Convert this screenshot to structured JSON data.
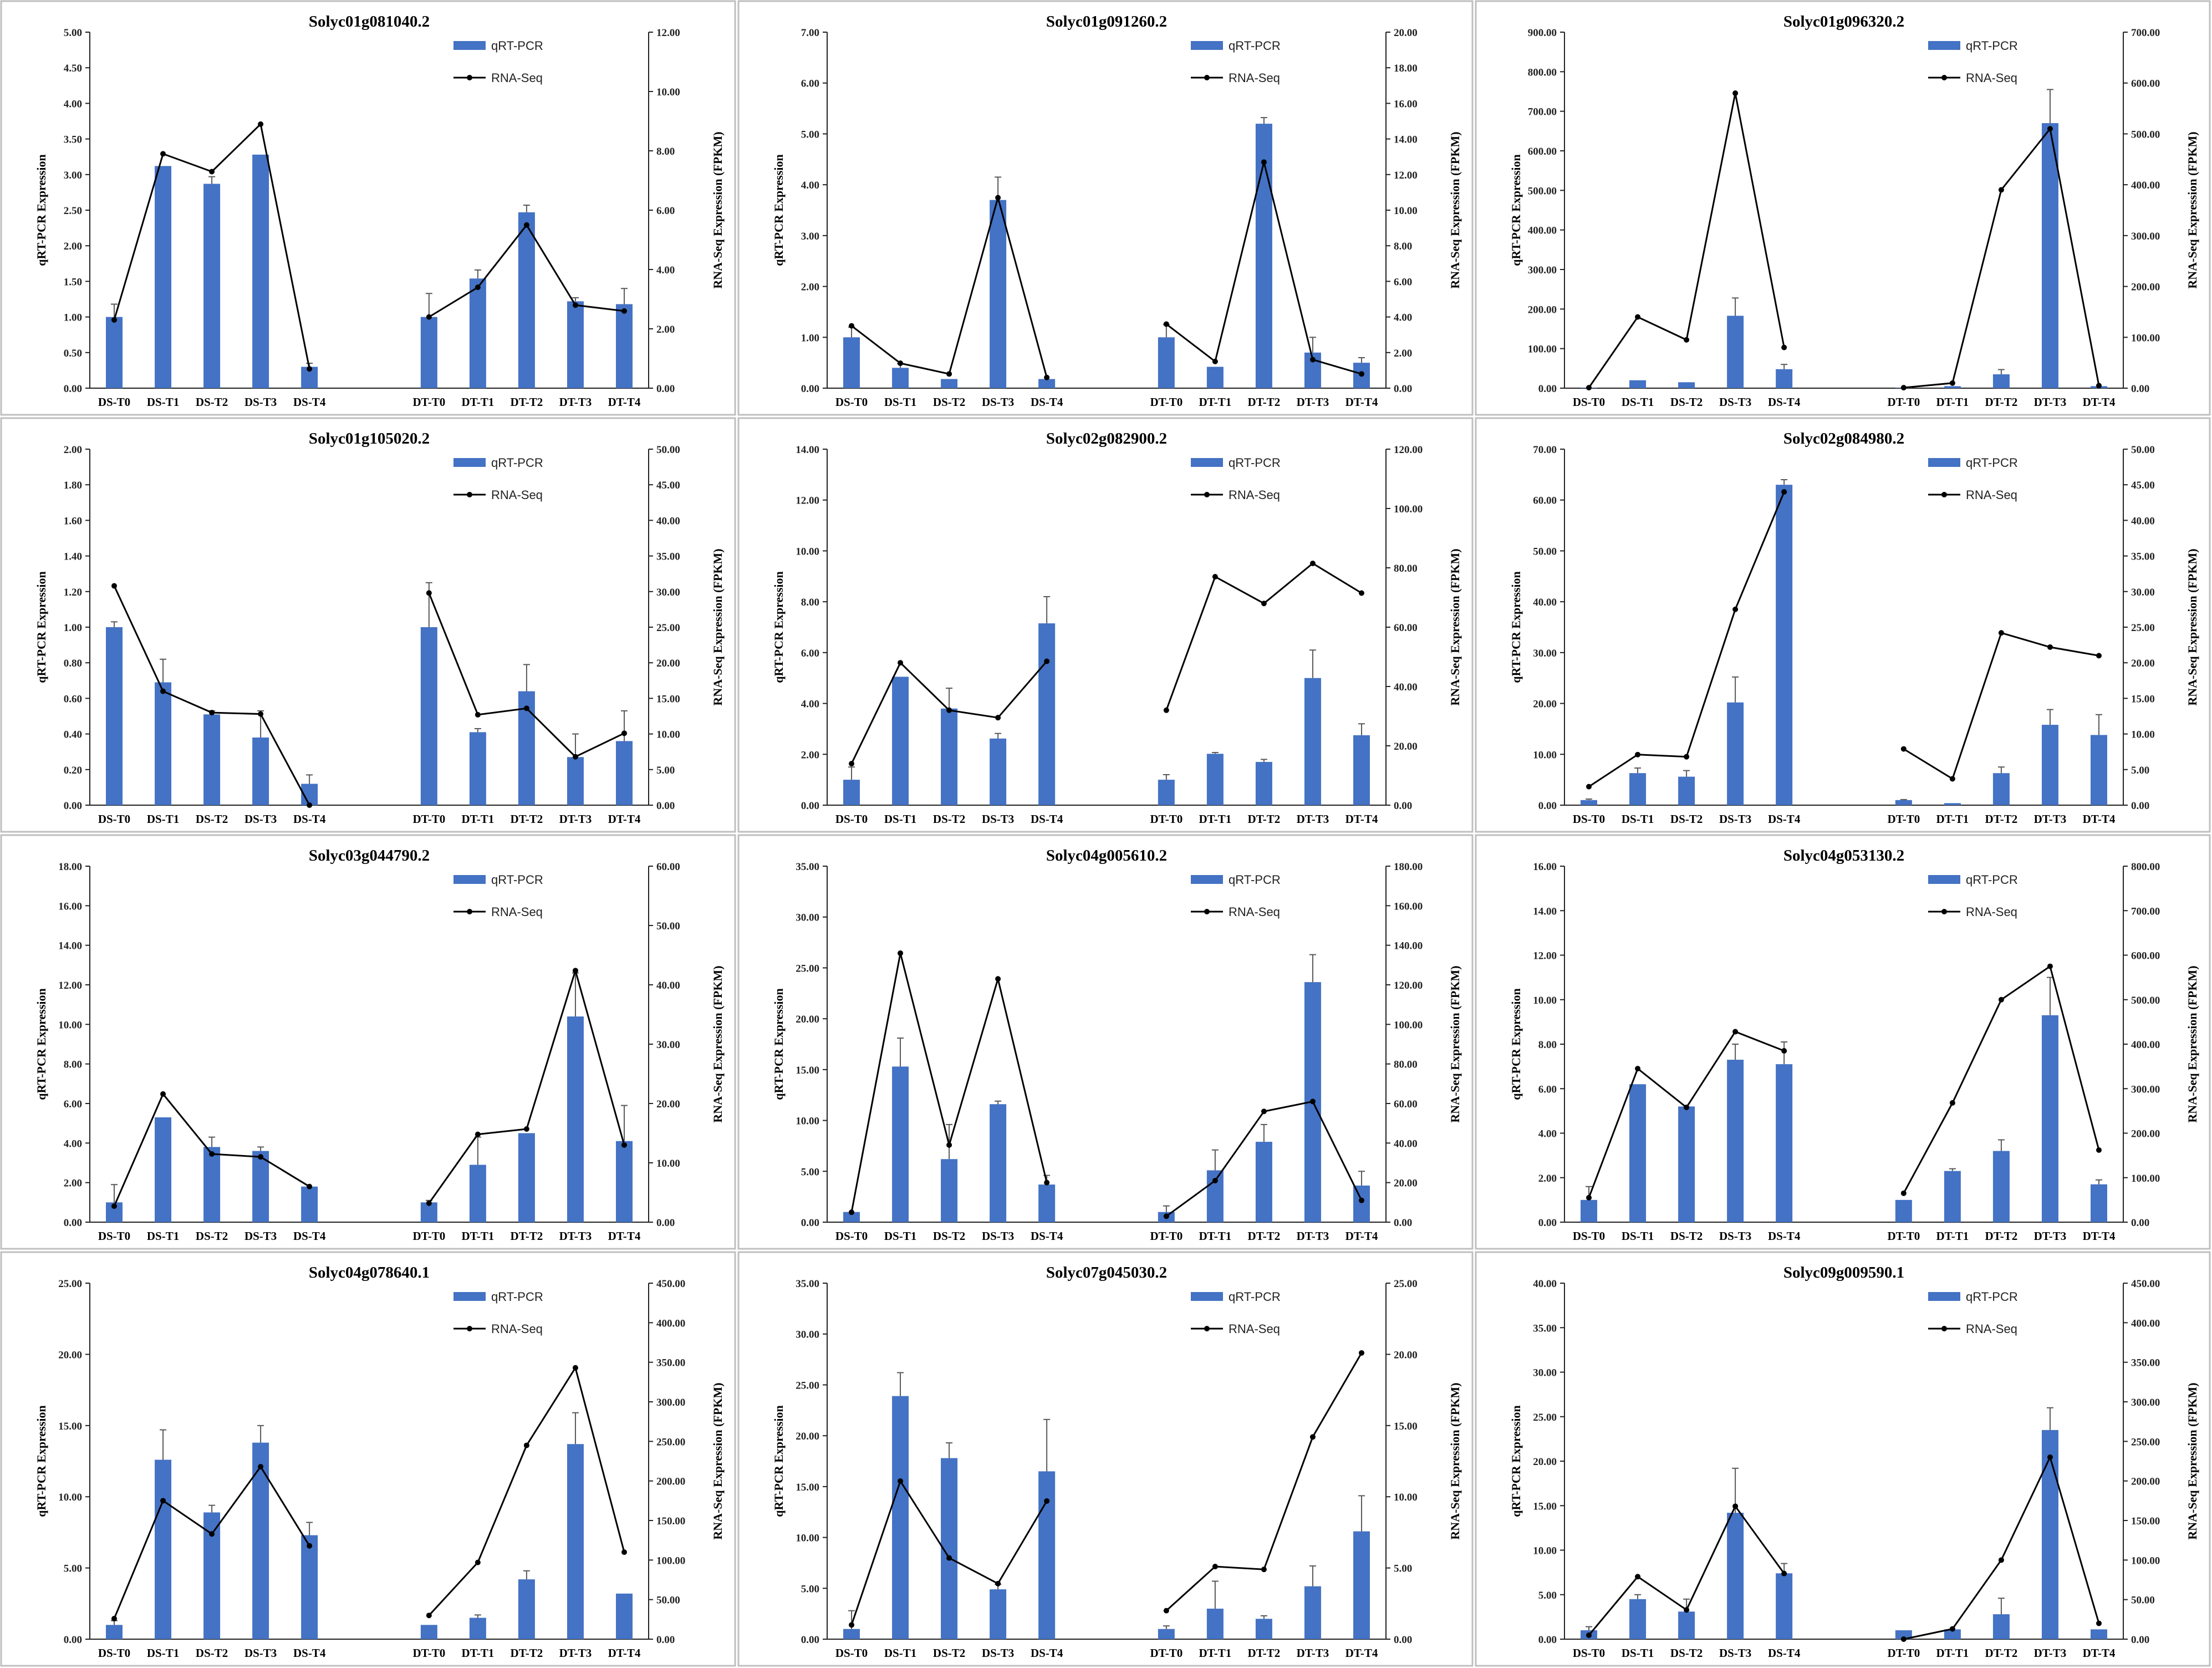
{
  "colors": {
    "bar": "#4472C4",
    "line": "#000000",
    "axis": "#222222",
    "frame": "#BFBFBF",
    "error": "#595959"
  },
  "chart_data": [
    {
      "type": "bar",
      "title": "Solyc01g081040.2",
      "ylabel": "qRT-PCR Expression",
      "y2label": "RNA-Seq Expression (FPKM)",
      "legend": [
        "qRT-PCR",
        "RNA-Seq"
      ],
      "left_ticks": [
        "0.00",
        "0.50",
        "1.00",
        "1.50",
        "2.00",
        "2.50",
        "3.00",
        "3.50",
        "4.00",
        "4.50",
        "5.00"
      ],
      "right_ticks": [
        "0.00",
        "2.00",
        "4.00",
        "6.00",
        "8.00",
        "10.00",
        "12.00"
      ],
      "ylim": [
        0,
        5
      ],
      "y2lim": [
        0,
        12
      ],
      "categories": [
        "DS-T0",
        "DS-T1",
        "DS-T2",
        "DS-T3",
        "DS-T4",
        "DT-T0",
        "DT-T1",
        "DT-T2",
        "DT-T3",
        "DT-T4"
      ],
      "series": [
        {
          "name": "qRT-PCR",
          "values": [
            1.0,
            3.12,
            2.87,
            3.28,
            0.3,
            1.0,
            1.54,
            2.47,
            1.22,
            1.18
          ],
          "errors": [
            0.18,
            0.0,
            0.1,
            0.0,
            0.05,
            0.33,
            0.12,
            0.1,
            0.05,
            0.22
          ]
        },
        {
          "name": "RNA-Seq",
          "values": [
            2.3,
            7.9,
            7.3,
            8.9,
            0.65,
            2.4,
            3.4,
            5.5,
            2.8,
            2.6
          ]
        }
      ]
    },
    {
      "type": "bar",
      "title": "Solyc01g091260.2",
      "ylabel": "qRT-PCR Expression",
      "y2label": "RNA-Seq Expression (FPKM)",
      "legend": [
        "qRT-PCR",
        "RNA-Seq"
      ],
      "left_ticks": [
        "0.00",
        "1.00",
        "2.00",
        "3.00",
        "4.00",
        "5.00",
        "6.00",
        "7.00"
      ],
      "right_ticks": [
        "0.00",
        "2.00",
        "4.00",
        "6.00",
        "8.00",
        "10.00",
        "12.00",
        "14.00",
        "16.00",
        "18.00",
        "20.00"
      ],
      "ylim": [
        0,
        7
      ],
      "y2lim": [
        0,
        20
      ],
      "categories": [
        "DS-T0",
        "DS-T1",
        "DS-T2",
        "DS-T3",
        "DS-T4",
        "DT-T0",
        "DT-T1",
        "DT-T2",
        "DT-T3",
        "DT-T4"
      ],
      "series": [
        {
          "name": "qRT-PCR",
          "values": [
            1.0,
            0.4,
            0.18,
            3.7,
            0.18,
            1.0,
            0.42,
            5.2,
            0.7,
            0.5
          ],
          "errors": [
            0.2,
            0.08,
            0.0,
            0.45,
            0.0,
            0.25,
            0.0,
            0.12,
            0.3,
            0.1
          ]
        },
        {
          "name": "RNA-Seq",
          "values": [
            3.5,
            1.4,
            0.8,
            10.7,
            0.6,
            3.6,
            1.5,
            12.7,
            1.6,
            0.8
          ]
        }
      ]
    },
    {
      "type": "bar",
      "title": "Solyc01g096320.2",
      "ylabel": "qRT-PCR Expression",
      "y2label": "RNA-Seq Expression (FPKM)",
      "legend": [
        "qRT-PCR",
        "RNA-Seq"
      ],
      "left_ticks": [
        "0.00",
        "100.00",
        "200.00",
        "300.00",
        "400.00",
        "500.00",
        "600.00",
        "700.00",
        "800.00",
        "900.00"
      ],
      "right_ticks": [
        "0.00",
        "100.00",
        "200.00",
        "300.00",
        "400.00",
        "500.00",
        "600.00",
        "700.00"
      ],
      "ylim": [
        0,
        900
      ],
      "y2lim": [
        0,
        700
      ],
      "categories": [
        "DS-T0",
        "DS-T1",
        "DS-T2",
        "DS-T3",
        "DS-T4",
        "DT-T0",
        "DT-T1",
        "DT-T2",
        "DT-T3",
        "DT-T4"
      ],
      "series": [
        {
          "name": "qRT-PCR",
          "values": [
            1,
            20,
            15,
            183,
            48,
            1,
            5,
            35,
            670,
            5
          ],
          "errors": [
            0,
            0,
            0,
            45,
            12,
            0,
            0,
            12,
            85,
            0
          ]
        },
        {
          "name": "RNA-Seq",
          "values": [
            1,
            140,
            95,
            580,
            80,
            1,
            10,
            390,
            510,
            5
          ]
        }
      ]
    },
    {
      "type": "bar",
      "title": "Solyc01g105020.2",
      "ylabel": "qRT-PCR Expression",
      "y2label": "RNA-Seq Expression (FPKM)",
      "legend": [
        "qRT-PCR",
        "RNA-Seq"
      ],
      "left_ticks": [
        "0.00",
        "0.20",
        "0.40",
        "0.60",
        "0.80",
        "1.00",
        "1.20",
        "1.40",
        "1.60",
        "1.80",
        "2.00"
      ],
      "right_ticks": [
        "0.00",
        "5.00",
        "10.00",
        "15.00",
        "20.00",
        "25.00",
        "30.00",
        "35.00",
        "40.00",
        "45.00",
        "50.00"
      ],
      "ylim": [
        0,
        2
      ],
      "y2lim": [
        0,
        50
      ],
      "categories": [
        "DS-T0",
        "DS-T1",
        "DS-T2",
        "DS-T3",
        "DS-T4",
        "DT-T0",
        "DT-T1",
        "DT-T2",
        "DT-T3",
        "DT-T4"
      ],
      "series": [
        {
          "name": "qRT-PCR",
          "values": [
            1.0,
            0.69,
            0.51,
            0.38,
            0.12,
            1.0,
            0.41,
            0.64,
            0.27,
            0.36
          ],
          "errors": [
            0.03,
            0.13,
            0.02,
            0.15,
            0.05,
            0.25,
            0.02,
            0.15,
            0.13,
            0.17
          ]
        },
        {
          "name": "RNA-Seq",
          "values": [
            30.8,
            16.0,
            13.0,
            12.8,
            0.0,
            29.8,
            12.7,
            13.6,
            6.8,
            10.1
          ]
        }
      ]
    },
    {
      "type": "bar",
      "title": "Solyc02g082900.2",
      "ylabel": "qRT-PCR Expression",
      "y2label": "RNA-Seq Expression (FPKM)",
      "legend": [
        "qRT-PCR",
        "RNA-Seq"
      ],
      "left_ticks": [
        "0.00",
        "2.00",
        "4.00",
        "6.00",
        "8.00",
        "10.00",
        "12.00",
        "14.00"
      ],
      "right_ticks": [
        "0.00",
        "20.00",
        "40.00",
        "60.00",
        "80.00",
        "100.00",
        "120.00"
      ],
      "ylim": [
        0,
        14
      ],
      "y2lim": [
        0,
        120
      ],
      "categories": [
        "DS-T0",
        "DS-T1",
        "DS-T2",
        "DS-T3",
        "DS-T4",
        "DT-T0",
        "DT-T1",
        "DT-T2",
        "DT-T3",
        "DT-T4"
      ],
      "series": [
        {
          "name": "qRT-PCR",
          "values": [
            1.0,
            5.05,
            3.8,
            2.62,
            7.15,
            1.0,
            2.02,
            1.7,
            5.0,
            2.75
          ],
          "errors": [
            0.5,
            0.0,
            0.8,
            0.2,
            1.05,
            0.2,
            0.05,
            0.1,
            1.1,
            0.45
          ]
        },
        {
          "name": "RNA-Seq",
          "values": [
            14.0,
            48.0,
            32.0,
            29.5,
            48.5,
            32.0,
            77.0,
            68.0,
            81.5,
            71.5
          ]
        }
      ]
    },
    {
      "type": "bar",
      "title": "Solyc02g084980.2",
      "ylabel": "qRT-PCR Expression",
      "y2label": "RNA-Seq Expression (FPKM)",
      "legend": [
        "qRT-PCR",
        "RNA-Seq"
      ],
      "left_ticks": [
        "0.00",
        "10.00",
        "20.00",
        "30.00",
        "40.00",
        "50.00",
        "60.00",
        "70.00"
      ],
      "right_ticks": [
        "0.00",
        "5.00",
        "10.00",
        "15.00",
        "20.00",
        "25.00",
        "30.00",
        "35.00",
        "40.00",
        "45.00",
        "50.00"
      ],
      "ylim": [
        0,
        70
      ],
      "y2lim": [
        0,
        50
      ],
      "categories": [
        "DS-T0",
        "DS-T1",
        "DS-T2",
        "DS-T3",
        "DS-T4",
        "DT-T0",
        "DT-T1",
        "DT-T2",
        "DT-T3",
        "DT-T4"
      ],
      "series": [
        {
          "name": "qRT-PCR",
          "values": [
            1.0,
            6.3,
            5.6,
            20.2,
            63.0,
            1.0,
            0.4,
            6.3,
            15.8,
            13.8
          ],
          "errors": [
            0.2,
            1.0,
            1.2,
            5.0,
            1.0,
            0.1,
            0.0,
            1.2,
            3.0,
            4.0
          ]
        },
        {
          "name": "RNA-Seq",
          "values": [
            2.6,
            7.1,
            6.8,
            27.5,
            44.0,
            7.9,
            3.7,
            24.2,
            22.2,
            21.0
          ]
        }
      ]
    },
    {
      "type": "bar",
      "title": "Solyc03g044790.2",
      "ylabel": "qRT-PCR Expression",
      "y2label": "RNA-Seq Expression (FPKM)",
      "legend": [
        "qRT-PCR",
        "RNA-Seq"
      ],
      "left_ticks": [
        "0.00",
        "2.00",
        "4.00",
        "6.00",
        "8.00",
        "10.00",
        "12.00",
        "14.00",
        "16.00",
        "18.00"
      ],
      "right_ticks": [
        "0.00",
        "10.00",
        "20.00",
        "30.00",
        "40.00",
        "50.00",
        "60.00"
      ],
      "ylim": [
        0,
        18
      ],
      "y2lim": [
        0,
        60
      ],
      "categories": [
        "DS-T0",
        "DS-T1",
        "DS-T2",
        "DS-T3",
        "DS-T4",
        "DT-T0",
        "DT-T1",
        "DT-T2",
        "DT-T3",
        "DT-T4"
      ],
      "series": [
        {
          "name": "qRT-PCR",
          "values": [
            1.0,
            5.3,
            3.8,
            3.6,
            1.8,
            1.0,
            2.9,
            4.5,
            10.4,
            4.1
          ],
          "errors": [
            0.9,
            0.0,
            0.5,
            0.2,
            0.0,
            0.1,
            1.4,
            0.0,
            2.2,
            1.8
          ]
        },
        {
          "name": "RNA-Seq",
          "values": [
            2.7,
            21.6,
            11.5,
            11.0,
            6.0,
            3.2,
            14.8,
            15.7,
            42.4,
            13.0
          ]
        }
      ]
    },
    {
      "type": "bar",
      "title": "Solyc04g005610.2",
      "ylabel": "qRT-PCR Expression",
      "y2label": "RNA-Seq Expression (FPKM)",
      "legend": [
        "qRT-PCR",
        "RNA-Seq"
      ],
      "left_ticks": [
        "0.00",
        "5.00",
        "10.00",
        "15.00",
        "20.00",
        "25.00",
        "30.00",
        "35.00"
      ],
      "right_ticks": [
        "0.00",
        "20.00",
        "40.00",
        "60.00",
        "80.00",
        "100.00",
        "120.00",
        "140.00",
        "160.00",
        "180.00"
      ],
      "ylim": [
        0,
        35
      ],
      "y2lim": [
        0,
        180
      ],
      "categories": [
        "DS-T0",
        "DS-T1",
        "DS-T2",
        "DS-T3",
        "DS-T4",
        "DT-T0",
        "DT-T1",
        "DT-T2",
        "DT-T3",
        "DT-T4"
      ],
      "series": [
        {
          "name": "qRT-PCR",
          "values": [
            1.0,
            15.3,
            6.2,
            11.6,
            3.7,
            1.0,
            5.1,
            7.9,
            23.6,
            3.6
          ],
          "errors": [
            0.0,
            2.8,
            3.4,
            0.3,
            0.9,
            0.6,
            2.0,
            1.7,
            2.7,
            1.4
          ]
        },
        {
          "name": "RNA-Seq",
          "values": [
            5,
            136,
            39,
            123,
            20,
            3,
            21,
            56,
            61,
            11
          ]
        }
      ]
    },
    {
      "type": "bar",
      "title": "Solyc04g053130.2",
      "ylabel": "qRT-PCR Expression",
      "y2label": "RNA-Seq Expression (FPKM)",
      "legend": [
        "qRT-PCR",
        "RNA-Seq"
      ],
      "left_ticks": [
        "0.00",
        "2.00",
        "4.00",
        "6.00",
        "8.00",
        "10.00",
        "12.00",
        "14.00",
        "16.00"
      ],
      "right_ticks": [
        "0.00",
        "100.00",
        "200.00",
        "300.00",
        "400.00",
        "500.00",
        "600.00",
        "700.00",
        "800.00"
      ],
      "ylim": [
        0,
        16
      ],
      "y2lim": [
        0,
        800
      ],
      "categories": [
        "DS-T0",
        "DS-T1",
        "DS-T2",
        "DS-T3",
        "DS-T4",
        "DT-T0",
        "DT-T1",
        "DT-T2",
        "DT-T3",
        "DT-T4"
      ],
      "series": [
        {
          "name": "qRT-PCR",
          "values": [
            1.0,
            6.2,
            5.2,
            7.3,
            7.1,
            1.0,
            2.3,
            3.2,
            9.3,
            1.7
          ],
          "errors": [
            0.6,
            0.0,
            0.0,
            0.7,
            1.0,
            0.0,
            0.1,
            0.5,
            1.7,
            0.2
          ]
        },
        {
          "name": "RNA-Seq",
          "values": [
            55,
            345,
            258,
            428,
            385,
            65,
            268,
            500,
            575,
            162
          ]
        }
      ]
    },
    {
      "type": "bar",
      "title": "Solyc04g078640.1",
      "ylabel": "qRT-PCR Expression",
      "y2label": "RNA-Seq Expression (FPKM)",
      "legend": [
        "qRT-PCR",
        "RNA-Seq"
      ],
      "left_ticks": [
        "0.00",
        "5.00",
        "10.00",
        "15.00",
        "20.00",
        "25.00"
      ],
      "right_ticks": [
        "0.00",
        "50.00",
        "100.00",
        "150.00",
        "200.00",
        "250.00",
        "300.00",
        "350.00",
        "400.00",
        "450.00"
      ],
      "ylim": [
        0,
        25
      ],
      "y2lim": [
        0,
        450
      ],
      "categories": [
        "DS-T0",
        "DS-T1",
        "DS-T2",
        "DS-T3",
        "DS-T4",
        "DT-T0",
        "DT-T1",
        "DT-T2",
        "DT-T3",
        "DT-T4"
      ],
      "series": [
        {
          "name": "qRT-PCR",
          "values": [
            1.0,
            12.6,
            8.9,
            13.8,
            7.3,
            1.0,
            1.5,
            4.2,
            13.7,
            3.2
          ],
          "errors": [
            0.3,
            2.1,
            0.5,
            1.2,
            0.9,
            0.0,
            0.2,
            0.6,
            2.2,
            0.0
          ]
        },
        {
          "name": "RNA-Seq",
          "values": [
            26,
            175,
            133,
            218,
            118,
            30,
            97,
            245,
            343,
            110
          ]
        }
      ]
    },
    {
      "type": "bar",
      "title": "Solyc07g045030.2",
      "ylabel": "qRT-PCR Expression",
      "y2label": "RNA-Seq Expression (FPKM)",
      "legend": [
        "qRT-PCR",
        "RNA-Seq"
      ],
      "left_ticks": [
        "0.00",
        "5.00",
        "10.00",
        "15.00",
        "20.00",
        "25.00",
        "30.00",
        "35.00"
      ],
      "right_ticks": [
        "0.00",
        "5.00",
        "10.00",
        "15.00",
        "20.00",
        "25.00"
      ],
      "ylim": [
        0,
        35
      ],
      "y2lim": [
        0,
        25
      ],
      "categories": [
        "DS-T0",
        "DS-T1",
        "DS-T2",
        "DS-T3",
        "DS-T4",
        "DT-T0",
        "DT-T1",
        "DT-T2",
        "DT-T3",
        "DT-T4"
      ],
      "series": [
        {
          "name": "qRT-PCR",
          "values": [
            1.0,
            23.9,
            17.8,
            4.9,
            16.5,
            1.0,
            3.0,
            2.0,
            5.2,
            10.6
          ],
          "errors": [
            1.8,
            2.3,
            1.5,
            0.5,
            5.1,
            0.3,
            2.7,
            0.3,
            2.0,
            3.5
          ]
        },
        {
          "name": "RNA-Seq",
          "values": [
            1.0,
            11.1,
            5.7,
            3.9,
            9.7,
            2.0,
            5.1,
            4.9,
            14.2,
            20.1
          ]
        }
      ]
    },
    {
      "type": "bar",
      "title": "Solyc09g009590.1",
      "ylabel": "qRT-PCR Expression",
      "y2label": "RNA-Seq Expression (FPKM)",
      "legend": [
        "qRT-PCR",
        "RNA-Seq"
      ],
      "left_ticks": [
        "0.00",
        "5.00",
        "10.00",
        "15.00",
        "20.00",
        "25.00",
        "30.00",
        "35.00",
        "40.00"
      ],
      "right_ticks": [
        "0.00",
        "50.00",
        "100.00",
        "150.00",
        "200.00",
        "250.00",
        "300.00",
        "350.00",
        "400.00",
        "450.00"
      ],
      "ylim": [
        0,
        40
      ],
      "y2lim": [
        0,
        450
      ],
      "categories": [
        "DS-T0",
        "DS-T1",
        "DS-T2",
        "DS-T3",
        "DS-T4",
        "DT-T0",
        "DT-T1",
        "DT-T2",
        "DT-T3",
        "DT-T4"
      ],
      "series": [
        {
          "name": "qRT-PCR",
          "values": [
            1.0,
            4.5,
            3.1,
            14.2,
            7.4,
            1.0,
            1.1,
            2.8,
            23.5,
            1.1
          ],
          "errors": [
            0.4,
            0.5,
            1.4,
            5.0,
            1.1,
            0.0,
            0.0,
            1.8,
            2.5,
            0.0
          ]
        },
        {
          "name": "RNA-Seq",
          "values": [
            5,
            79,
            37,
            168,
            83,
            0,
            13,
            100,
            230,
            20
          ]
        }
      ]
    }
  ]
}
